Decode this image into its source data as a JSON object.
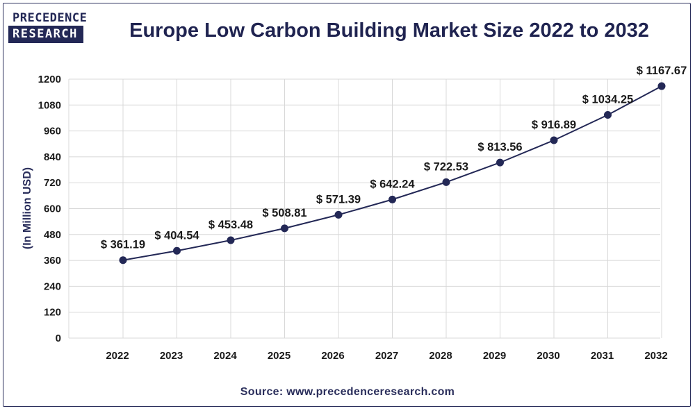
{
  "logo": {
    "line1": "PRECEDENCE",
    "line2": "RESEARCH"
  },
  "title": "Europe Low Carbon Building Market Size 2022 to 2032",
  "source": "Source: www.precedenceresearch.com",
  "colors": {
    "line": "#232856",
    "point": "#232856",
    "grid": "#d8d8d8",
    "frame": "#2b2f5c"
  },
  "chart_data": {
    "type": "line",
    "title": "Europe Low Carbon Building Market Size 2022 to 2032",
    "xlabel": "",
    "ylabel": "(In Million USD)",
    "x": [
      "2022",
      "2023",
      "2024",
      "2025",
      "2026",
      "2027",
      "2028",
      "2029",
      "2030",
      "2031",
      "2032"
    ],
    "series": [
      {
        "values": [
          361.19,
          404.54,
          453.48,
          508.81,
          571.39,
          642.24,
          722.53,
          813.56,
          916.89,
          1034.25,
          1167.67
        ]
      }
    ],
    "data_labels": [
      "$ 361.19",
      "$ 404.54",
      "$ 453.48",
      "$ 508.81",
      "$ 571.39",
      "$ 642.24",
      "$ 722.53",
      "$ 813.56",
      "$ 916.89",
      "$ 1034.25",
      "$ 1167.67"
    ],
    "yticks": [
      0,
      120,
      240,
      360,
      480,
      600,
      720,
      840,
      960,
      1080,
      1200
    ],
    "ylim": [
      0,
      1200
    ],
    "grid": true,
    "legend": "none"
  }
}
